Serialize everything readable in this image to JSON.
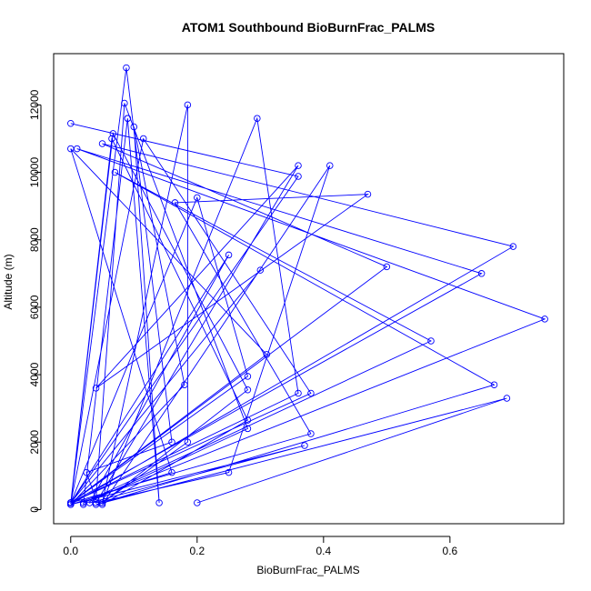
{
  "chart_data": {
    "type": "line",
    "title": "ATOM1 Southbound BioBurnFrac_PALMS",
    "xlabel": "BioBurnFrac_PALMS",
    "ylabel": "Altitude (m)",
    "xlim": [
      -0.027,
      0.78
    ],
    "ylim": [
      -420,
      13520
    ],
    "x_ticks": [
      0.0,
      0.2,
      0.4,
      0.6
    ],
    "x_tick_labels": [
      "0.0",
      "0.2",
      "0.4",
      "0.6"
    ],
    "y_ticks": [
      0,
      2000,
      4000,
      6000,
      8000,
      10000,
      12000
    ],
    "y_tick_labels": [
      "0",
      "2000",
      "4000",
      "6000",
      "8000",
      "10000",
      "12000"
    ],
    "grid": false,
    "series": [
      {
        "color": "#0000ff",
        "marker": "open-circle",
        "points": [
          [
            0.0,
            11450
          ],
          [
            0.36,
            9880
          ],
          [
            0.0,
            200
          ],
          [
            0.088,
            13100
          ],
          [
            0.16,
            2000
          ],
          [
            0.025,
            1100
          ],
          [
            0.04,
            300
          ],
          [
            0.085,
            12050
          ],
          [
            0.28,
            2400
          ],
          [
            0.02,
            150
          ],
          [
            0.09,
            11600
          ],
          [
            0.09,
            11600
          ],
          [
            0.14,
            200
          ],
          [
            0.1,
            11350
          ],
          [
            0.18,
            3700
          ],
          [
            0.0,
            150
          ],
          [
            0.16,
            1100
          ],
          [
            0.0,
            10700
          ],
          [
            0.31,
            4600
          ],
          [
            0.0,
            200
          ],
          [
            0.115,
            11000
          ],
          [
            0.38,
            3450
          ],
          [
            0.0,
            200
          ],
          [
            0.067,
            11150
          ],
          [
            0.28,
            3550
          ],
          [
            0.05,
            200
          ],
          [
            0.185,
            12000
          ],
          [
            0.185,
            2000
          ],
          [
            0.05,
            200
          ],
          [
            0.295,
            11600
          ],
          [
            0.36,
            3450
          ],
          [
            0.0,
            200
          ],
          [
            0.065,
            11000
          ],
          [
            0.28,
            2650
          ],
          [
            0.05,
            150
          ],
          [
            0.41,
            10200
          ],
          [
            0.25,
            1100
          ],
          [
            0.04,
            200
          ],
          [
            0.36,
            10200
          ],
          [
            0.04,
            3600
          ],
          [
            0.47,
            9350
          ],
          [
            0.165,
            9100
          ],
          [
            0.38,
            2250
          ],
          [
            0.0,
            200
          ],
          [
            0.2,
            9250
          ],
          [
            0.28,
            3950
          ],
          [
            0.0,
            200
          ],
          [
            0.3,
            7100
          ],
          [
            0.0,
            200
          ],
          [
            0.25,
            7550
          ],
          [
            0.03,
            200
          ],
          [
            0.37,
            1900
          ],
          [
            0.0,
            150
          ],
          [
            0.7,
            7800
          ],
          [
            0.05,
            10850
          ],
          [
            0.5,
            7200
          ],
          [
            0.0,
            200
          ],
          [
            0.65,
            7000
          ],
          [
            0.01,
            10700
          ],
          [
            0.75,
            5650
          ],
          [
            0.02,
            200
          ],
          [
            0.57,
            5000
          ],
          [
            0.07,
            10000
          ],
          [
            0.67,
            3700
          ],
          [
            0.04,
            150
          ],
          [
            0.69,
            3300
          ],
          [
            0.2,
            200
          ]
        ]
      }
    ]
  }
}
